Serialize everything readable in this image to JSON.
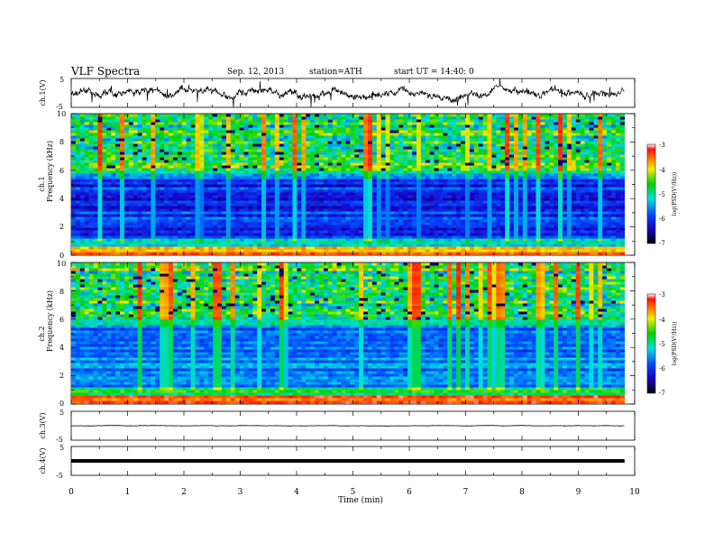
{
  "header": {
    "title": "VLF Spectra",
    "date": "Sep. 12, 2013",
    "station": "station=ATH",
    "start": "start UT =  14:40: 0"
  },
  "chart_data": {
    "type": "heatmap",
    "x": {
      "label": "Time (min)",
      "range": [
        0,
        10
      ],
      "ticks": [
        "0",
        "1",
        "2",
        "3",
        "4",
        "5",
        "6",
        "7",
        "8",
        "9",
        "10"
      ],
      "data_end": 9.82
    },
    "panels": [
      {
        "id": "ch1_wave",
        "type": "line",
        "ylabel": "ch.1(V)",
        "yticks": [
          "5",
          "-5"
        ],
        "ylim": [
          -5,
          5
        ],
        "baseline": 0.0
      },
      {
        "id": "ch1_spec",
        "type": "heatmap",
        "ylabel": [
          "ch.1",
          "Frequency (kHz)"
        ],
        "yticks": [
          "0",
          "2",
          "4",
          "6",
          "8",
          "10"
        ],
        "ylim": [
          0,
          10
        ],
        "colorbar": {
          "label": "log(PSD(V²/Hz))",
          "ticks": [
            "-3",
            "-4",
            "-5",
            "-6",
            "-7"
          ],
          "range": [
            -7,
            -3
          ]
        }
      },
      {
        "id": "ch2_spec",
        "type": "heatmap",
        "ylabel": [
          "ch.2",
          "Frequency (kHz)"
        ],
        "yticks": [
          "0",
          "2",
          "4",
          "6",
          "8",
          "10"
        ],
        "ylim": [
          0,
          10
        ],
        "colorbar": {
          "label": "log(PSD(V²/Hz))",
          "ticks": [
            "-3",
            "-4",
            "-5",
            "-6",
            "-7"
          ],
          "range": [
            -7,
            -3
          ]
        }
      },
      {
        "id": "ch3_wave",
        "type": "line",
        "ylabel": "ch.3(V)",
        "yticks": [
          "5",
          "-5"
        ],
        "ylim": [
          -5,
          5
        ],
        "baseline": 0.0
      },
      {
        "id": "ch4_wave",
        "type": "line",
        "ylabel": "ch.4(V)",
        "yticks": [
          "5",
          "-5"
        ],
        "ylim": [
          -5,
          5
        ],
        "baseline": 0.0
      }
    ]
  }
}
